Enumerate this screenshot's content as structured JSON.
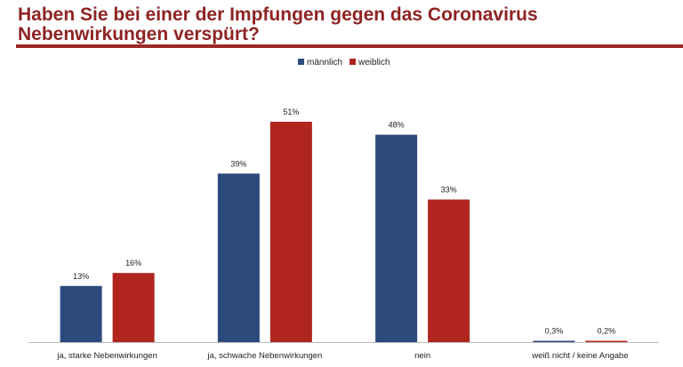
{
  "chart_data": {
    "type": "bar",
    "title": "Haben Sie bei einer der Impfungen gegen das Coronavirus Nebenwirkungen verspürt?",
    "categories": [
      "ja, starke Nebenwirkungen",
      "ja, schwache Nebenwirkungen",
      "nein",
      "weiß nicht / keine Angabe"
    ],
    "series": [
      {
        "name": "männlich",
        "color": "#2c4a7c",
        "values": [
          13,
          39,
          48,
          0.3
        ],
        "labels": [
          "13%",
          "39%",
          "48%",
          "0,3%"
        ]
      },
      {
        "name": "weiblich",
        "color": "#b0261e",
        "values": [
          16,
          51,
          33,
          0.2
        ],
        "labels": [
          "16%",
          "51%",
          "33%",
          "0,2%"
        ]
      }
    ],
    "ylim": [
      0,
      55
    ],
    "grid": false,
    "legend": "top-center",
    "xlabel": "",
    "ylabel": ""
  },
  "colors": {
    "title": "#8e2424",
    "rule": "#9a2a26"
  }
}
